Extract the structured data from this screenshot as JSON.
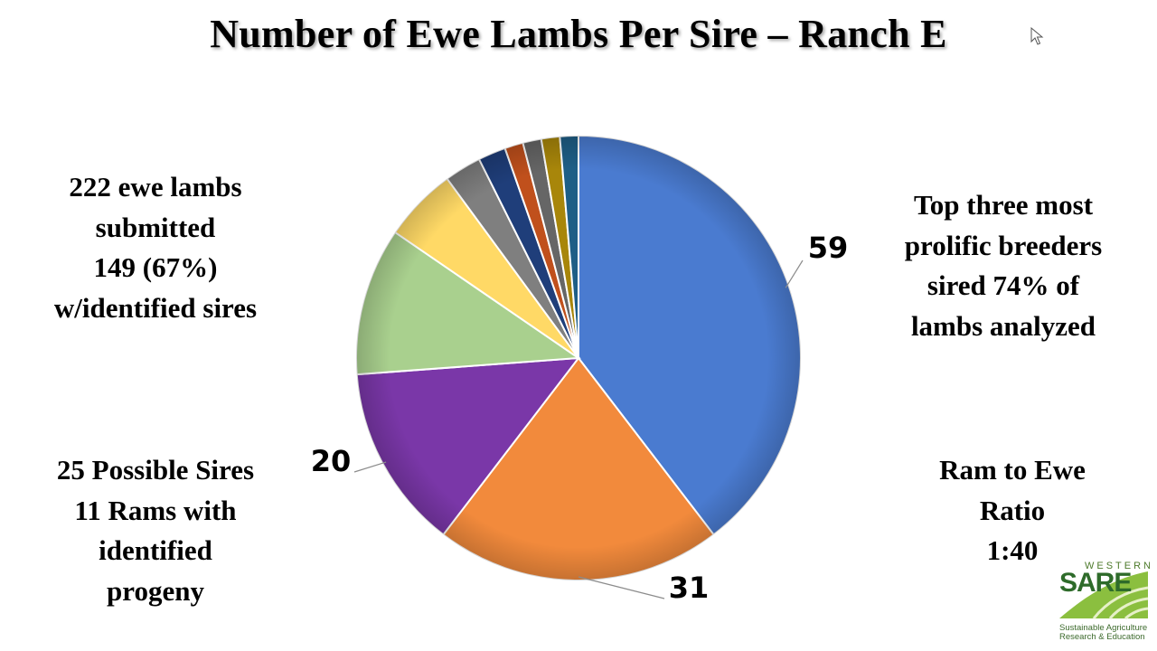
{
  "slide": {
    "title": "Number of Ewe Lambs Per Sire – Ranch E",
    "note_left_top": [
      "222 ewe lambs",
      "submitted",
      "149 (67%)",
      "w/identified sires"
    ],
    "note_left_bottom": [
      "25 Possible Sires",
      "11 Rams with",
      "identified",
      "progeny"
    ],
    "note_right_top": [
      "Top three most",
      "prolific breeders",
      "sired 74% of",
      "lambs analyzed"
    ],
    "note_right_bottom": [
      "Ram to Ewe",
      "Ratio",
      "1:40"
    ]
  },
  "logo": {
    "top": "WESTERN",
    "main": "SARE",
    "sub_line1": "Sustainable Agriculture",
    "sub_line2": "Research & Education"
  },
  "chart_data": {
    "type": "pie",
    "title": "Number of Ewe Lambs Per Sire – Ranch E",
    "start_angle_deg": 0,
    "direction": "clockwise",
    "slices": [
      {
        "value": 59,
        "label": "59",
        "color": "#4a7bd0"
      },
      {
        "value": 31,
        "label": "31",
        "color": "#f28a3c"
      },
      {
        "value": 20,
        "label": "20",
        "color": "#7a37a8"
      },
      {
        "value": 16,
        "label": "",
        "color": "#a9d08e"
      },
      {
        "value": 8,
        "label": "",
        "color": "#ffd966"
      },
      {
        "value": 4,
        "label": "",
        "color": "#7f7f7f"
      },
      {
        "value": 3,
        "label": "",
        "color": "#1f3e7a"
      },
      {
        "value": 2,
        "label": "",
        "color": "#c0501c"
      },
      {
        "value": 2,
        "label": "",
        "color": "#666666"
      },
      {
        "value": 2,
        "label": "",
        "color": "#a8860a"
      },
      {
        "value": 2,
        "label": "",
        "color": "#1e5e86"
      }
    ]
  }
}
